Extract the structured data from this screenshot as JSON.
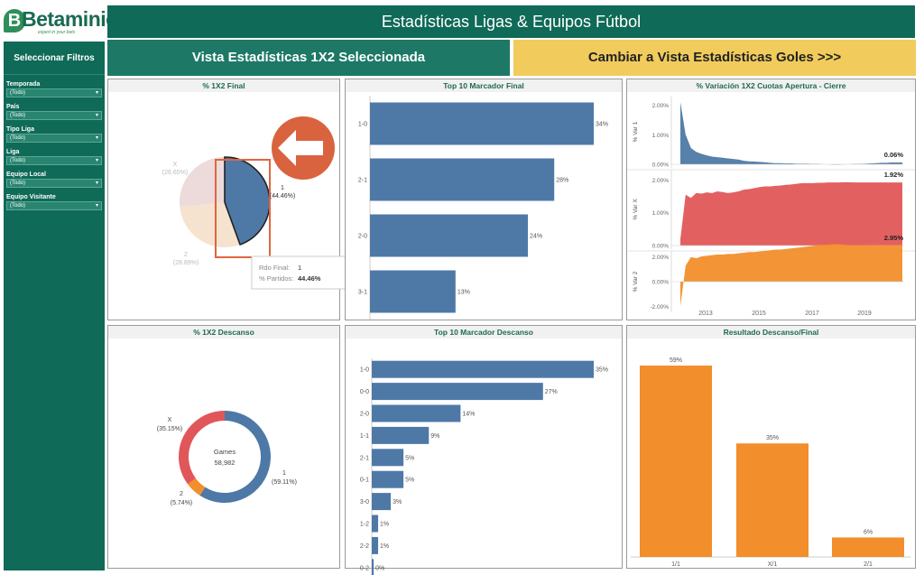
{
  "brand": {
    "name": "Betaminic",
    "tagline": "expert in your bets"
  },
  "header": {
    "title": "Estadísticas Ligas & Equipos Fútbol"
  },
  "sidebar": {
    "title": "Seleccionar Filtros",
    "filters": [
      {
        "label": "Temporada",
        "value": "(Todo)"
      },
      {
        "label": "País",
        "value": "(Todo)"
      },
      {
        "label": "Tipo Liga",
        "value": "(Todo)"
      },
      {
        "label": "Liga",
        "value": "(Todo)"
      },
      {
        "label": "Equipo Local",
        "value": "(Todo)"
      },
      {
        "label": "Equipo Visitante",
        "value": "(Todo)"
      }
    ]
  },
  "view_buttons": {
    "current": "Vista Estadísticas 1X2 Seleccionada",
    "switch": "Cambiar a Vista Estadísticas Goles >>>"
  },
  "colors": {
    "blue": "#4e79a7",
    "red": "#e15759",
    "orange": "#f28e2b",
    "green_dark": "#0f6a57",
    "yellow": "#f1cc5d"
  },
  "panels": {
    "p1": "% 1X2 Final",
    "p2": "Top 10 Marcador Final",
    "p3": "% Variación 1X2 Cuotas Apertura - Cierre",
    "p4": "% 1X2 Descanso",
    "p5": "Top 10 Marcador Descanso",
    "p6": "Resultado Descanso/Final"
  },
  "tooltip": {
    "label1": "Rdo Final:",
    "value1": "1",
    "label2": "% Partidos:",
    "value2": "44.46%"
  },
  "chart_data": [
    {
      "type": "pie",
      "title": "% 1X2 Final",
      "slices": [
        {
          "label": "1",
          "pct_label": "(44.46%)",
          "value": 44.46
        },
        {
          "label": "2",
          "pct_label": "(28.89%)",
          "value": 28.89
        },
        {
          "label": "X",
          "pct_label": "(26.65%)",
          "value": 26.65
        }
      ]
    },
    {
      "type": "bar",
      "title": "Top 10 Marcador Final",
      "categories": [
        "1-0",
        "2-1",
        "2-0",
        "3-1"
      ],
      "values": [
        34,
        28,
        24,
        13
      ],
      "value_labels": [
        "34%",
        "28%",
        "24%",
        "13%"
      ]
    },
    {
      "type": "area",
      "title": "% Variación 1X2 Cuotas Apertura - Cierre",
      "x_ticks": [
        "2013",
        "2015",
        "2017",
        "2019"
      ],
      "series": [
        {
          "name": "% Var 1",
          "y_ticks": [
            "2.00%",
            "1.00%",
            "0.00%"
          ],
          "ylim": [
            0,
            2.2
          ],
          "last_label": "0.06%",
          "values": [
            2.1,
            1.0,
            0.55,
            0.42,
            0.35,
            0.3,
            0.26,
            0.24,
            0.22,
            0.2,
            0.18,
            0.16,
            0.12,
            0.1,
            0.09,
            0.08,
            0.07,
            0.05,
            0.04,
            0.04,
            0.03,
            0.03,
            0.02,
            0.02,
            0.02,
            0.01,
            0.01,
            0.0,
            0.0,
            -0.01,
            -0.01,
            0.0,
            0.0,
            0.01,
            0.01,
            0.02,
            0.03,
            0.04,
            0.05,
            0.05,
            0.06,
            0.06,
            0.06
          ]
        },
        {
          "name": "% Var X",
          "y_ticks": [
            "2.00%",
            "1.00%",
            "0.00%"
          ],
          "ylim": [
            0,
            2.2
          ],
          "last_label": "1.92%",
          "values": [
            0.2,
            1.55,
            1.45,
            1.6,
            1.58,
            1.62,
            1.6,
            1.65,
            1.63,
            1.6,
            1.62,
            1.65,
            1.7,
            1.72,
            1.75,
            1.78,
            1.8,
            1.8,
            1.82,
            1.83,
            1.85,
            1.86,
            1.88,
            1.9,
            1.9,
            1.9,
            1.91,
            1.91,
            1.92,
            1.92,
            1.92,
            1.93,
            1.93,
            1.92,
            1.92,
            1.92,
            1.92,
            1.92,
            1.92,
            1.92,
            1.92,
            1.92,
            1.92
          ]
        },
        {
          "name": "% Var 2",
          "y_ticks": [
            "2.00%",
            "0.00%",
            "-2.00%"
          ],
          "ylim": [
            -2.2,
            2.2
          ],
          "last_label": "2.95%",
          "values": [
            -2.0,
            1.3,
            2.0,
            1.9,
            2.05,
            2.1,
            2.15,
            2.2,
            2.2,
            2.25,
            2.25,
            2.3,
            2.35,
            2.4,
            2.4,
            2.45,
            2.5,
            2.55,
            2.6,
            2.6,
            2.65,
            2.7,
            2.75,
            2.8,
            2.85,
            2.9,
            2.95,
            3.0,
            3.0,
            3.05,
            3.05,
            3.0,
            2.98,
            2.97,
            2.96,
            2.95,
            2.95,
            2.95,
            2.95,
            2.95,
            2.95,
            2.95,
            2.95
          ]
        }
      ]
    },
    {
      "type": "pie",
      "title": "% 1X2 Descanso",
      "center_label": "Games",
      "center_value": "58,982",
      "slices": [
        {
          "label": "1",
          "pct_label": "(59.11%)",
          "value": 59.11
        },
        {
          "label": "2",
          "pct_label": "(5.74%)",
          "value": 5.74
        },
        {
          "label": "X",
          "pct_label": "(35.15%)",
          "value": 35.15
        }
      ]
    },
    {
      "type": "bar",
      "title": "Top 10 Marcador Descanso",
      "categories": [
        "1-0",
        "0-0",
        "2-0",
        "1-1",
        "2-1",
        "0-1",
        "3-0",
        "1-2",
        "2-2",
        "0-2"
      ],
      "values": [
        35,
        27,
        14,
        9,
        5,
        5,
        3,
        1,
        1,
        0.3
      ],
      "value_labels": [
        "35%",
        "27%",
        "14%",
        "9%",
        "5%",
        "5%",
        "3%",
        "1%",
        "1%",
        "0%"
      ]
    },
    {
      "type": "bar",
      "title": "Resultado Descanso/Final",
      "categories": [
        "1/1",
        "X/1",
        "2/1"
      ],
      "values": [
        59,
        35,
        6
      ],
      "value_labels": [
        "59%",
        "35%",
        "6%"
      ]
    }
  ]
}
